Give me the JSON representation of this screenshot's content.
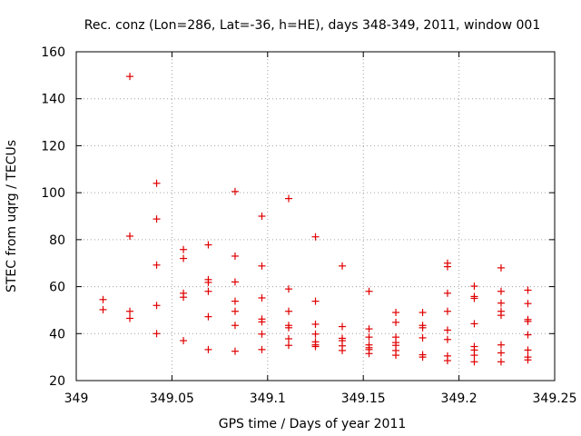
{
  "chart_data": {
    "type": "scatter",
    "title": "Rec. conz (Lon=286, Lat=-36, h=HE), days 348-349, 2011, window 001",
    "xlabel": "GPS time / Days of year 2011",
    "ylabel": "STEC from uqrg / TECUs",
    "xlim": [
      349,
      349.25
    ],
    "ylim": [
      20,
      160
    ],
    "xticks": [
      "349",
      "349.05",
      "349.1",
      "349.15",
      "349.2",
      "349.25"
    ],
    "xtick_values": [
      349,
      349.05,
      349.1,
      349.15,
      349.2,
      349.25
    ],
    "yticks": [
      "20",
      "40",
      "60",
      "80",
      "100",
      "120",
      "140",
      "160"
    ],
    "ytick_values": [
      20,
      40,
      60,
      80,
      100,
      120,
      140,
      160
    ],
    "grid": true,
    "marker": "+",
    "color": "#e00000",
    "points": [
      [
        349.014,
        54.5
      ],
      [
        349.014,
        50.2
      ],
      [
        349.028,
        149.5
      ],
      [
        349.028,
        81.5
      ],
      [
        349.028,
        49.5
      ],
      [
        349.028,
        46.5
      ],
      [
        349.042,
        104
      ],
      [
        349.042,
        88.8
      ],
      [
        349.042,
        69.2
      ],
      [
        349.042,
        52
      ],
      [
        349.042,
        40
      ],
      [
        349.056,
        75.8
      ],
      [
        349.056,
        72
      ],
      [
        349.056,
        57.2
      ],
      [
        349.056,
        55.5
      ],
      [
        349.056,
        37
      ],
      [
        349.069,
        77.8
      ],
      [
        349.069,
        63
      ],
      [
        349.069,
        61.8
      ],
      [
        349.069,
        58
      ],
      [
        349.069,
        47.2
      ],
      [
        349.069,
        33.2
      ],
      [
        349.083,
        100.5
      ],
      [
        349.083,
        73
      ],
      [
        349.083,
        62
      ],
      [
        349.083,
        53.8
      ],
      [
        349.083,
        49.5
      ],
      [
        349.083,
        43.5
      ],
      [
        349.083,
        32.5
      ],
      [
        349.097,
        90
      ],
      [
        349.097,
        68.8
      ],
      [
        349.097,
        55.2
      ],
      [
        349.097,
        46.2
      ],
      [
        349.097,
        45
      ],
      [
        349.097,
        39.8
      ],
      [
        349.097,
        33.2
      ],
      [
        349.111,
        97.5
      ],
      [
        349.111,
        59
      ],
      [
        349.111,
        49.5
      ],
      [
        349.111,
        43.5
      ],
      [
        349.111,
        42.5
      ],
      [
        349.111,
        37.8
      ],
      [
        349.111,
        35
      ],
      [
        349.125,
        81.2
      ],
      [
        349.125,
        53.8
      ],
      [
        349.125,
        44
      ],
      [
        349.125,
        39.8
      ],
      [
        349.125,
        36.5
      ],
      [
        349.125,
        35.2
      ],
      [
        349.125,
        34.5
      ],
      [
        349.139,
        68.8
      ],
      [
        349.139,
        43
      ],
      [
        349.139,
        38
      ],
      [
        349.139,
        37
      ],
      [
        349.139,
        34.8
      ],
      [
        349.139,
        32.8
      ],
      [
        349.153,
        58
      ],
      [
        349.153,
        42
      ],
      [
        349.153,
        38.5
      ],
      [
        349.153,
        35.2
      ],
      [
        349.153,
        34
      ],
      [
        349.153,
        33.2
      ],
      [
        349.153,
        31.5
      ],
      [
        349.167,
        49
      ],
      [
        349.167,
        44.8
      ],
      [
        349.167,
        38.5
      ],
      [
        349.167,
        36.2
      ],
      [
        349.167,
        35
      ],
      [
        349.167,
        32.8
      ],
      [
        349.167,
        30.8
      ],
      [
        349.181,
        49
      ],
      [
        349.181,
        43.5
      ],
      [
        349.181,
        42.5
      ],
      [
        349.181,
        38.2
      ],
      [
        349.181,
        31
      ],
      [
        349.181,
        30
      ],
      [
        349.194,
        70
      ],
      [
        349.194,
        68.5
      ],
      [
        349.194,
        57.2
      ],
      [
        349.194,
        49.5
      ],
      [
        349.194,
        41.5
      ],
      [
        349.194,
        37.5
      ],
      [
        349.194,
        30.5
      ],
      [
        349.194,
        28.5
      ],
      [
        349.208,
        60.2
      ],
      [
        349.208,
        55.8
      ],
      [
        349.208,
        55
      ],
      [
        349.208,
        44.2
      ],
      [
        349.208,
        34.5
      ],
      [
        349.208,
        33
      ],
      [
        349.208,
        30.8
      ],
      [
        349.208,
        28
      ],
      [
        349.222,
        68
      ],
      [
        349.222,
        58
      ],
      [
        349.222,
        53
      ],
      [
        349.222,
        49.5
      ],
      [
        349.222,
        47.8
      ],
      [
        349.222,
        35.2
      ],
      [
        349.222,
        31.8
      ],
      [
        349.222,
        28
      ],
      [
        349.236,
        58.5
      ],
      [
        349.236,
        52.8
      ],
      [
        349.236,
        46
      ],
      [
        349.236,
        45.2
      ],
      [
        349.236,
        39.5
      ],
      [
        349.236,
        33
      ],
      [
        349.236,
        30
      ],
      [
        349.236,
        28.8
      ]
    ]
  }
}
